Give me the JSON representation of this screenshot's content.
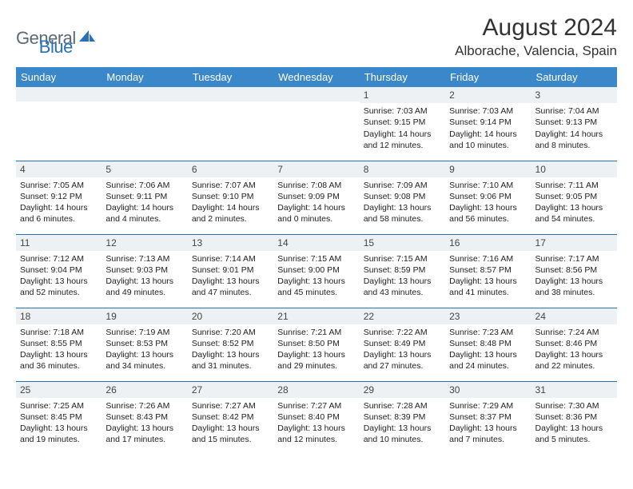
{
  "logo": {
    "text_a": "General",
    "text_b": "Blue",
    "color_gray": "#5a6a78",
    "color_blue": "#2970b8"
  },
  "header": {
    "title": "August 2024",
    "location": "Alborache, Valencia, Spain"
  },
  "calendar": {
    "header_bg": "#3a87c9",
    "header_fg": "#ffffff",
    "border_color": "#2970b8",
    "daynum_bg": "#eef1f3",
    "weekdays": [
      "Sunday",
      "Monday",
      "Tuesday",
      "Wednesday",
      "Thursday",
      "Friday",
      "Saturday"
    ],
    "weeks": [
      [
        {
          "day": ""
        },
        {
          "day": ""
        },
        {
          "day": ""
        },
        {
          "day": ""
        },
        {
          "day": "1",
          "sunrise": "Sunrise: 7:03 AM",
          "sunset": "Sunset: 9:15 PM",
          "daylight1": "Daylight: 14 hours",
          "daylight2": "and 12 minutes."
        },
        {
          "day": "2",
          "sunrise": "Sunrise: 7:03 AM",
          "sunset": "Sunset: 9:14 PM",
          "daylight1": "Daylight: 14 hours",
          "daylight2": "and 10 minutes."
        },
        {
          "day": "3",
          "sunrise": "Sunrise: 7:04 AM",
          "sunset": "Sunset: 9:13 PM",
          "daylight1": "Daylight: 14 hours",
          "daylight2": "and 8 minutes."
        }
      ],
      [
        {
          "day": "4",
          "sunrise": "Sunrise: 7:05 AM",
          "sunset": "Sunset: 9:12 PM",
          "daylight1": "Daylight: 14 hours",
          "daylight2": "and 6 minutes."
        },
        {
          "day": "5",
          "sunrise": "Sunrise: 7:06 AM",
          "sunset": "Sunset: 9:11 PM",
          "daylight1": "Daylight: 14 hours",
          "daylight2": "and 4 minutes."
        },
        {
          "day": "6",
          "sunrise": "Sunrise: 7:07 AM",
          "sunset": "Sunset: 9:10 PM",
          "daylight1": "Daylight: 14 hours",
          "daylight2": "and 2 minutes."
        },
        {
          "day": "7",
          "sunrise": "Sunrise: 7:08 AM",
          "sunset": "Sunset: 9:09 PM",
          "daylight1": "Daylight: 14 hours",
          "daylight2": "and 0 minutes."
        },
        {
          "day": "8",
          "sunrise": "Sunrise: 7:09 AM",
          "sunset": "Sunset: 9:08 PM",
          "daylight1": "Daylight: 13 hours",
          "daylight2": "and 58 minutes."
        },
        {
          "day": "9",
          "sunrise": "Sunrise: 7:10 AM",
          "sunset": "Sunset: 9:06 PM",
          "daylight1": "Daylight: 13 hours",
          "daylight2": "and 56 minutes."
        },
        {
          "day": "10",
          "sunrise": "Sunrise: 7:11 AM",
          "sunset": "Sunset: 9:05 PM",
          "daylight1": "Daylight: 13 hours",
          "daylight2": "and 54 minutes."
        }
      ],
      [
        {
          "day": "11",
          "sunrise": "Sunrise: 7:12 AM",
          "sunset": "Sunset: 9:04 PM",
          "daylight1": "Daylight: 13 hours",
          "daylight2": "and 52 minutes."
        },
        {
          "day": "12",
          "sunrise": "Sunrise: 7:13 AM",
          "sunset": "Sunset: 9:03 PM",
          "daylight1": "Daylight: 13 hours",
          "daylight2": "and 49 minutes."
        },
        {
          "day": "13",
          "sunrise": "Sunrise: 7:14 AM",
          "sunset": "Sunset: 9:01 PM",
          "daylight1": "Daylight: 13 hours",
          "daylight2": "and 47 minutes."
        },
        {
          "day": "14",
          "sunrise": "Sunrise: 7:15 AM",
          "sunset": "Sunset: 9:00 PM",
          "daylight1": "Daylight: 13 hours",
          "daylight2": "and 45 minutes."
        },
        {
          "day": "15",
          "sunrise": "Sunrise: 7:15 AM",
          "sunset": "Sunset: 8:59 PM",
          "daylight1": "Daylight: 13 hours",
          "daylight2": "and 43 minutes."
        },
        {
          "day": "16",
          "sunrise": "Sunrise: 7:16 AM",
          "sunset": "Sunset: 8:57 PM",
          "daylight1": "Daylight: 13 hours",
          "daylight2": "and 41 minutes."
        },
        {
          "day": "17",
          "sunrise": "Sunrise: 7:17 AM",
          "sunset": "Sunset: 8:56 PM",
          "daylight1": "Daylight: 13 hours",
          "daylight2": "and 38 minutes."
        }
      ],
      [
        {
          "day": "18",
          "sunrise": "Sunrise: 7:18 AM",
          "sunset": "Sunset: 8:55 PM",
          "daylight1": "Daylight: 13 hours",
          "daylight2": "and 36 minutes."
        },
        {
          "day": "19",
          "sunrise": "Sunrise: 7:19 AM",
          "sunset": "Sunset: 8:53 PM",
          "daylight1": "Daylight: 13 hours",
          "daylight2": "and 34 minutes."
        },
        {
          "day": "20",
          "sunrise": "Sunrise: 7:20 AM",
          "sunset": "Sunset: 8:52 PM",
          "daylight1": "Daylight: 13 hours",
          "daylight2": "and 31 minutes."
        },
        {
          "day": "21",
          "sunrise": "Sunrise: 7:21 AM",
          "sunset": "Sunset: 8:50 PM",
          "daylight1": "Daylight: 13 hours",
          "daylight2": "and 29 minutes."
        },
        {
          "day": "22",
          "sunrise": "Sunrise: 7:22 AM",
          "sunset": "Sunset: 8:49 PM",
          "daylight1": "Daylight: 13 hours",
          "daylight2": "and 27 minutes."
        },
        {
          "day": "23",
          "sunrise": "Sunrise: 7:23 AM",
          "sunset": "Sunset: 8:48 PM",
          "daylight1": "Daylight: 13 hours",
          "daylight2": "and 24 minutes."
        },
        {
          "day": "24",
          "sunrise": "Sunrise: 7:24 AM",
          "sunset": "Sunset: 8:46 PM",
          "daylight1": "Daylight: 13 hours",
          "daylight2": "and 22 minutes."
        }
      ],
      [
        {
          "day": "25",
          "sunrise": "Sunrise: 7:25 AM",
          "sunset": "Sunset: 8:45 PM",
          "daylight1": "Daylight: 13 hours",
          "daylight2": "and 19 minutes."
        },
        {
          "day": "26",
          "sunrise": "Sunrise: 7:26 AM",
          "sunset": "Sunset: 8:43 PM",
          "daylight1": "Daylight: 13 hours",
          "daylight2": "and 17 minutes."
        },
        {
          "day": "27",
          "sunrise": "Sunrise: 7:27 AM",
          "sunset": "Sunset: 8:42 PM",
          "daylight1": "Daylight: 13 hours",
          "daylight2": "and 15 minutes."
        },
        {
          "day": "28",
          "sunrise": "Sunrise: 7:27 AM",
          "sunset": "Sunset: 8:40 PM",
          "daylight1": "Daylight: 13 hours",
          "daylight2": "and 12 minutes."
        },
        {
          "day": "29",
          "sunrise": "Sunrise: 7:28 AM",
          "sunset": "Sunset: 8:39 PM",
          "daylight1": "Daylight: 13 hours",
          "daylight2": "and 10 minutes."
        },
        {
          "day": "30",
          "sunrise": "Sunrise: 7:29 AM",
          "sunset": "Sunset: 8:37 PM",
          "daylight1": "Daylight: 13 hours",
          "daylight2": "and 7 minutes."
        },
        {
          "day": "31",
          "sunrise": "Sunrise: 7:30 AM",
          "sunset": "Sunset: 8:36 PM",
          "daylight1": "Daylight: 13 hours",
          "daylight2": "and 5 minutes."
        }
      ]
    ]
  }
}
